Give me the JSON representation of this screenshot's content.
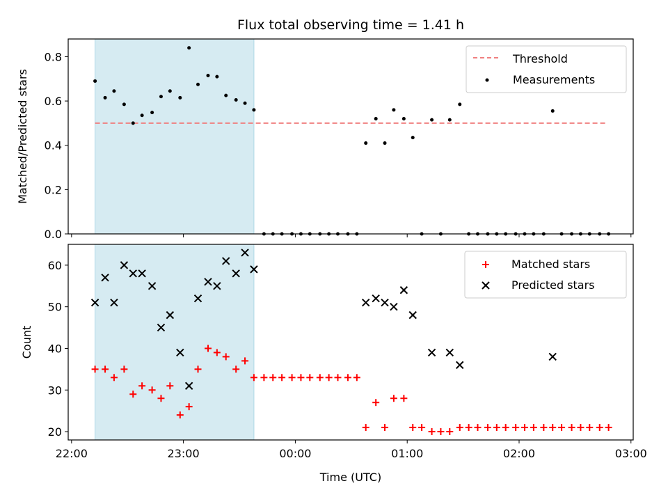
{
  "chart_data": [
    {
      "type": "scatter",
      "title": "Flux total observing time = 1.41 h",
      "xlabel": "",
      "ylabel": "Matched/Predicted stars",
      "xlim": [
        -0.03,
        5.02
      ],
      "ylim": [
        0.0,
        0.88
      ],
      "yticks": [
        0.0,
        0.2,
        0.4,
        0.6,
        0.8
      ],
      "ytick_labels": [
        "0.0",
        "0.2",
        "0.4",
        "0.6",
        "0.8"
      ],
      "legend_position": "top-right",
      "highlight_span": {
        "x0": 0.21,
        "x1": 1.63,
        "color": "#add8e6"
      },
      "threshold": {
        "name": "Threshold",
        "y": 0.5,
        "x0": 0.21,
        "x1": 4.78,
        "color": "#f08080"
      },
      "series": [
        {
          "name": "Measurements",
          "marker": "dot",
          "color": "#000000",
          "points": [
            [
              0.21,
              0.69
            ],
            [
              0.3,
              0.615
            ],
            [
              0.38,
              0.645
            ],
            [
              0.47,
              0.585
            ],
            [
              0.55,
              0.5
            ],
            [
              0.63,
              0.535
            ],
            [
              0.72,
              0.548
            ],
            [
              0.8,
              0.62
            ],
            [
              0.88,
              0.645
            ],
            [
              0.97,
              0.615
            ],
            [
              1.05,
              0.84
            ],
            [
              1.13,
              0.675
            ],
            [
              1.22,
              0.715
            ],
            [
              1.3,
              0.71
            ],
            [
              1.38,
              0.625
            ],
            [
              1.47,
              0.605
            ],
            [
              1.55,
              0.59
            ],
            [
              1.63,
              0.56
            ],
            [
              1.72,
              0
            ],
            [
              1.8,
              0
            ],
            [
              1.88,
              0
            ],
            [
              1.97,
              0
            ],
            [
              2.05,
              0
            ],
            [
              2.13,
              0
            ],
            [
              2.22,
              0
            ],
            [
              2.3,
              0
            ],
            [
              2.38,
              0
            ],
            [
              2.47,
              0
            ],
            [
              2.55,
              0
            ],
            [
              2.63,
              0.41
            ],
            [
              2.72,
              0.52
            ],
            [
              2.8,
              0.41
            ],
            [
              2.88,
              0.56
            ],
            [
              2.97,
              0.52
            ],
            [
              3.05,
              0.435
            ],
            [
              3.13,
              0
            ],
            [
              3.22,
              0.515
            ],
            [
              3.3,
              0
            ],
            [
              3.38,
              0.515
            ],
            [
              3.47,
              0.585
            ],
            [
              3.55,
              0
            ],
            [
              3.63,
              0
            ],
            [
              3.72,
              0
            ],
            [
              3.8,
              0
            ],
            [
              3.88,
              0
            ],
            [
              3.97,
              0
            ],
            [
              4.05,
              0
            ],
            [
              4.13,
              0
            ],
            [
              4.22,
              0
            ],
            [
              4.3,
              0.555
            ],
            [
              4.38,
              0
            ],
            [
              4.47,
              0
            ],
            [
              4.55,
              0
            ],
            [
              4.63,
              0
            ],
            [
              4.72,
              0
            ],
            [
              4.8,
              0
            ]
          ]
        }
      ]
    },
    {
      "type": "scatter",
      "title": "",
      "xlabel": "Time (UTC)",
      "ylabel": "Count",
      "xlim": [
        -0.03,
        5.02
      ],
      "ylim": [
        18,
        65
      ],
      "yticks": [
        20,
        30,
        40,
        50,
        60
      ],
      "ytick_labels": [
        "20",
        "30",
        "40",
        "50",
        "60"
      ],
      "xticks": [
        0,
        1,
        2,
        3,
        4,
        5
      ],
      "xtick_labels": [
        "22:00",
        "23:00",
        "00:00",
        "01:00",
        "02:00",
        "03:00"
      ],
      "legend_position": "top-right",
      "highlight_span": {
        "x0": 0.21,
        "x1": 1.63,
        "color": "#add8e6"
      },
      "series": [
        {
          "name": "Matched stars",
          "marker": "plus",
          "color": "#ff0000",
          "points": [
            [
              0.21,
              35
            ],
            [
              0.3,
              35
            ],
            [
              0.38,
              33
            ],
            [
              0.47,
              35
            ],
            [
              0.55,
              29
            ],
            [
              0.63,
              31
            ],
            [
              0.72,
              30
            ],
            [
              0.8,
              28
            ],
            [
              0.88,
              31
            ],
            [
              0.97,
              24
            ],
            [
              1.05,
              26
            ],
            [
              1.13,
              35
            ],
            [
              1.22,
              40
            ],
            [
              1.3,
              39
            ],
            [
              1.38,
              38
            ],
            [
              1.47,
              35
            ],
            [
              1.55,
              37
            ],
            [
              1.63,
              33
            ],
            [
              1.72,
              33
            ],
            [
              1.8,
              33
            ],
            [
              1.88,
              33
            ],
            [
              1.97,
              33
            ],
            [
              2.05,
              33
            ],
            [
              2.13,
              33
            ],
            [
              2.22,
              33
            ],
            [
              2.3,
              33
            ],
            [
              2.38,
              33
            ],
            [
              2.47,
              33
            ],
            [
              2.55,
              33
            ],
            [
              2.63,
              21
            ],
            [
              2.72,
              27
            ],
            [
              2.8,
              21
            ],
            [
              2.88,
              28
            ],
            [
              2.97,
              28
            ],
            [
              3.05,
              21
            ],
            [
              3.13,
              21
            ],
            [
              3.22,
              20
            ],
            [
              3.3,
              20
            ],
            [
              3.38,
              20
            ],
            [
              3.47,
              21
            ],
            [
              3.55,
              21
            ],
            [
              3.63,
              21
            ],
            [
              3.72,
              21
            ],
            [
              3.8,
              21
            ],
            [
              3.88,
              21
            ],
            [
              3.97,
              21
            ],
            [
              4.05,
              21
            ],
            [
              4.13,
              21
            ],
            [
              4.22,
              21
            ],
            [
              4.3,
              21
            ],
            [
              4.38,
              21
            ],
            [
              4.47,
              21
            ],
            [
              4.55,
              21
            ],
            [
              4.63,
              21
            ],
            [
              4.72,
              21
            ],
            [
              4.8,
              21
            ]
          ]
        },
        {
          "name": "Predicted stars",
          "marker": "x",
          "color": "#000000",
          "points": [
            [
              0.21,
              51
            ],
            [
              0.3,
              57
            ],
            [
              0.38,
              51
            ],
            [
              0.47,
              60
            ],
            [
              0.55,
              58
            ],
            [
              0.63,
              58
            ],
            [
              0.72,
              55
            ],
            [
              0.8,
              45
            ],
            [
              0.88,
              48
            ],
            [
              0.97,
              39
            ],
            [
              1.05,
              31
            ],
            [
              1.13,
              52
            ],
            [
              1.22,
              56
            ],
            [
              1.3,
              55
            ],
            [
              1.38,
              61
            ],
            [
              1.47,
              58
            ],
            [
              1.55,
              63
            ],
            [
              1.63,
              59
            ],
            [
              2.63,
              51
            ],
            [
              2.72,
              52
            ],
            [
              2.8,
              51
            ],
            [
              2.88,
              50
            ],
            [
              2.97,
              54
            ],
            [
              3.05,
              48
            ],
            [
              3.22,
              39
            ],
            [
              3.38,
              39
            ],
            [
              3.47,
              36
            ],
            [
              4.3,
              38
            ]
          ]
        }
      ]
    }
  ]
}
